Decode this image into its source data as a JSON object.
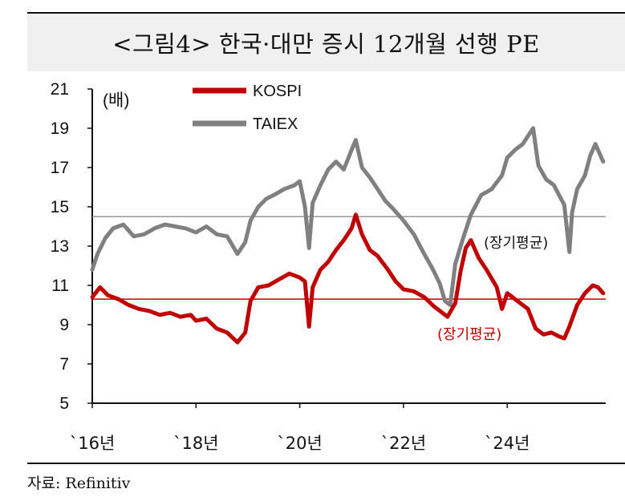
{
  "title": "<그림4> 한국·대만 증시 12개월 선행 PE",
  "source": "자료: Refinitiv",
  "chart_data": {
    "type": "line",
    "unit_label": "(배)",
    "ylim": [
      5,
      21
    ],
    "yticks": [
      5,
      7,
      9,
      11,
      13,
      15,
      17,
      19,
      21
    ],
    "x_tick_labels": [
      "`16년",
      "`18년",
      "`20년",
      "`22년",
      "`24년"
    ],
    "x_tick_years": [
      2016,
      2018,
      2020,
      2022,
      2024
    ],
    "xlim": [
      2016.0,
      2025.9
    ],
    "legend_position": "top-left",
    "grid": false,
    "reference_lines": [
      {
        "label": "(장기평균)",
        "value": 14.5,
        "color": "#999999",
        "label_color": "#111111"
      },
      {
        "label": "(장기평균)",
        "value": 10.3,
        "color": "#c00000",
        "label_color": "#c00000"
      }
    ],
    "series": [
      {
        "name": "KOSPI",
        "color": "#c00000",
        "x": [
          2016.0,
          2016.15,
          2016.3,
          2016.5,
          2016.7,
          2016.9,
          2017.1,
          2017.3,
          2017.5,
          2017.7,
          2017.9,
          2018.0,
          2018.2,
          2018.4,
          2018.6,
          2018.8,
          2018.95,
          2019.05,
          2019.2,
          2019.4,
          2019.6,
          2019.8,
          2020.0,
          2020.1,
          2020.18,
          2020.25,
          2020.4,
          2020.55,
          2020.7,
          2020.85,
          2021.0,
          2021.08,
          2021.2,
          2021.35,
          2021.5,
          2021.7,
          2021.85,
          2022.0,
          2022.2,
          2022.4,
          2022.6,
          2022.75,
          2022.85,
          2023.0,
          2023.1,
          2023.2,
          2023.3,
          2023.45,
          2023.6,
          2023.8,
          2023.9,
          2024.0,
          2024.2,
          2024.4,
          2024.55,
          2024.7,
          2024.85,
          2025.0,
          2025.1,
          2025.2,
          2025.35,
          2025.5,
          2025.65,
          2025.75,
          2025.85
        ],
        "values": [
          10.4,
          10.9,
          10.5,
          10.3,
          10.0,
          9.8,
          9.7,
          9.5,
          9.6,
          9.4,
          9.5,
          9.2,
          9.3,
          8.8,
          8.6,
          8.1,
          8.6,
          10.2,
          10.9,
          11.0,
          11.3,
          11.6,
          11.4,
          11.2,
          8.9,
          10.9,
          11.8,
          12.2,
          12.8,
          13.3,
          13.9,
          14.6,
          13.6,
          12.8,
          12.5,
          11.8,
          11.2,
          10.8,
          10.7,
          10.4,
          9.9,
          9.6,
          9.4,
          10.1,
          11.7,
          12.9,
          13.3,
          12.4,
          11.8,
          10.9,
          9.8,
          10.6,
          10.2,
          9.8,
          8.8,
          8.5,
          8.6,
          8.4,
          8.3,
          8.9,
          10.0,
          10.6,
          11.0,
          10.9,
          10.6
        ]
      },
      {
        "name": "TAIEX",
        "color": "#808080",
        "x": [
          2016.0,
          2016.1,
          2016.25,
          2016.4,
          2016.6,
          2016.8,
          2017.0,
          2017.2,
          2017.4,
          2017.6,
          2017.8,
          2018.0,
          2018.2,
          2018.4,
          2018.6,
          2018.8,
          2018.95,
          2019.05,
          2019.2,
          2019.35,
          2019.5,
          2019.7,
          2019.9,
          2020.0,
          2020.1,
          2020.18,
          2020.25,
          2020.4,
          2020.55,
          2020.7,
          2020.85,
          2021.0,
          2021.08,
          2021.2,
          2021.35,
          2021.5,
          2021.65,
          2021.8,
          2022.0,
          2022.2,
          2022.4,
          2022.55,
          2022.7,
          2022.8,
          2022.9,
          2023.0,
          2023.15,
          2023.3,
          2023.5,
          2023.7,
          2023.9,
          2024.0,
          2024.15,
          2024.3,
          2024.5,
          2024.6,
          2024.75,
          2024.9,
          2025.0,
          2025.1,
          2025.2,
          2025.25,
          2025.35,
          2025.5,
          2025.6,
          2025.7,
          2025.8,
          2025.85
        ],
        "values": [
          11.8,
          12.6,
          13.4,
          13.9,
          14.1,
          13.5,
          13.6,
          13.9,
          14.1,
          14.0,
          13.9,
          13.7,
          14.0,
          13.6,
          13.5,
          12.6,
          13.2,
          14.3,
          15.0,
          15.4,
          15.6,
          15.9,
          16.1,
          16.3,
          15.0,
          12.9,
          15.2,
          16.1,
          16.9,
          17.3,
          16.9,
          17.9,
          18.4,
          17.0,
          16.5,
          15.9,
          15.3,
          14.9,
          14.3,
          13.6,
          12.6,
          11.9,
          11.1,
          10.2,
          10.0,
          12.1,
          13.4,
          14.6,
          15.6,
          15.9,
          16.6,
          17.5,
          17.9,
          18.2,
          19.0,
          17.1,
          16.4,
          16.1,
          15.6,
          15.1,
          12.7,
          14.7,
          15.9,
          16.6,
          17.6,
          18.2,
          17.6,
          17.3
        ]
      }
    ]
  }
}
